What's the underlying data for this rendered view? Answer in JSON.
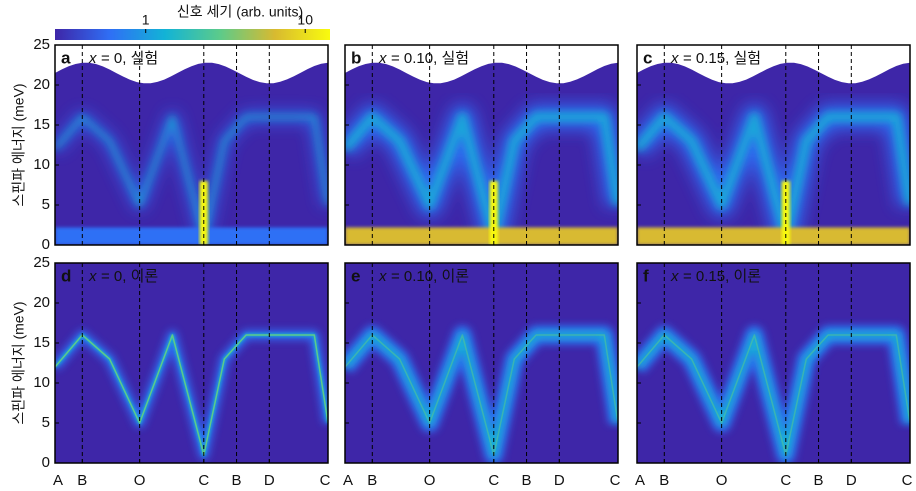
{
  "colorbar": {
    "label": "신호 세기 (arb. units)",
    "ticks": [
      1,
      10
    ],
    "clim": [
      0.27,
      14.3
    ],
    "log": true,
    "colors": [
      "#3e26a8",
      "#2f6ff5",
      "#12b3d6",
      "#5ccb8a",
      "#d8ba30",
      "#f9fb0e"
    ]
  },
  "y_axis": {
    "label": "스핀파 에너지 (meV)",
    "ylim": [
      0,
      25
    ],
    "yticks": [
      0,
      5,
      10,
      15,
      20,
      25
    ]
  },
  "x_axis": {
    "categories": [
      "A",
      "B",
      "O",
      "C",
      "B",
      "D",
      "C"
    ]
  },
  "panels": [
    {
      "type": "heatmap",
      "letter": "a",
      "variable": "x",
      "label": "= 0, 실험",
      "kind": "experiment",
      "text_color": "#000"
    },
    {
      "type": "heatmap",
      "letter": "b",
      "variable": "x",
      "label": "= 0.10, 실험",
      "kind": "experiment",
      "text_color": "#000"
    },
    {
      "type": "heatmap",
      "letter": "c",
      "variable": "x",
      "label": "= 0.15, 실험",
      "kind": "experiment",
      "text_color": "#000"
    },
    {
      "type": "heatmap",
      "letter": "d",
      "variable": "x",
      "label": "= 0, 이론",
      "kind": "theory",
      "text_color": "#fff"
    },
    {
      "type": "heatmap",
      "letter": "e",
      "variable": "x",
      "label": "= 0.10, 이론",
      "kind": "theory",
      "text_color": "#fff"
    },
    {
      "type": "heatmap",
      "letter": "f",
      "variable": "x",
      "label": "= 0.15, 이론",
      "kind": "theory",
      "text_color": "#fff"
    }
  ]
}
